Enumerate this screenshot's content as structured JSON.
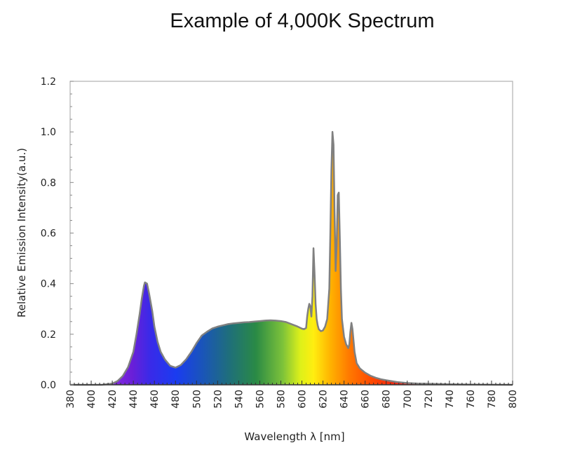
{
  "chart_data": {
    "type": "area",
    "title": "Example of 4,000K Spectrum",
    "xlabel": "Wavelength λ [nm]",
    "ylabel": "Relative Emission Intensity(a.u.)",
    "xlim": [
      380,
      800
    ],
    "ylim": [
      0,
      1.2
    ],
    "x_ticks": [
      "380",
      "400",
      "420",
      "440",
      "460",
      "480",
      "500",
      "520",
      "540",
      "560",
      "580",
      "600",
      "620",
      "640",
      "660",
      "680",
      "700",
      "720",
      "740",
      "760",
      "780",
      "800"
    ],
    "y_ticks": [
      "0.0",
      "0.2",
      "0.4",
      "0.6",
      "0.8",
      "1.0",
      "1.2"
    ],
    "grid": false,
    "fill": "visible-spectrum gradient",
    "line_color": "#808080",
    "series": [
      {
        "x": [
          380,
          410,
          420,
          425,
          430,
          435,
          440,
          443,
          446,
          448,
          450,
          451,
          453,
          455,
          458,
          460,
          463,
          466,
          470,
          475,
          480,
          485,
          490,
          495,
          500,
          505,
          510,
          515,
          520,
          525,
          530,
          535,
          540,
          545,
          550,
          555,
          560,
          565,
          570,
          575,
          580,
          585,
          590,
          595,
          600,
          602,
          604,
          605,
          606,
          607,
          608,
          609,
          610,
          611,
          612,
          613,
          614,
          615,
          616,
          618,
          620,
          622,
          624,
          626,
          627,
          628,
          629,
          630,
          631,
          632,
          633,
          634,
          635,
          636,
          637,
          638,
          640,
          642,
          644,
          645,
          646,
          647,
          648,
          650,
          652,
          655,
          660,
          665,
          670,
          675,
          680,
          690,
          700,
          710,
          720,
          730,
          740,
          760,
          800
        ],
        "y": [
          0,
          0,
          0.005,
          0.015,
          0.035,
          0.07,
          0.13,
          0.2,
          0.28,
          0.34,
          0.39,
          0.405,
          0.4,
          0.36,
          0.29,
          0.23,
          0.17,
          0.13,
          0.1,
          0.075,
          0.068,
          0.078,
          0.1,
          0.13,
          0.165,
          0.195,
          0.21,
          0.223,
          0.23,
          0.235,
          0.24,
          0.243,
          0.245,
          0.247,
          0.248,
          0.25,
          0.252,
          0.254,
          0.255,
          0.254,
          0.252,
          0.248,
          0.24,
          0.232,
          0.222,
          0.22,
          0.225,
          0.27,
          0.3,
          0.32,
          0.31,
          0.27,
          0.35,
          0.54,
          0.44,
          0.32,
          0.26,
          0.235,
          0.22,
          0.212,
          0.215,
          0.23,
          0.26,
          0.38,
          0.6,
          0.85,
          1.0,
          0.95,
          0.68,
          0.45,
          0.55,
          0.75,
          0.76,
          0.58,
          0.38,
          0.26,
          0.19,
          0.16,
          0.145,
          0.16,
          0.21,
          0.245,
          0.22,
          0.13,
          0.085,
          0.065,
          0.048,
          0.036,
          0.028,
          0.022,
          0.018,
          0.011,
          0.007,
          0.005,
          0.004,
          0.003,
          0.002,
          0.001,
          0
        ]
      }
    ]
  }
}
